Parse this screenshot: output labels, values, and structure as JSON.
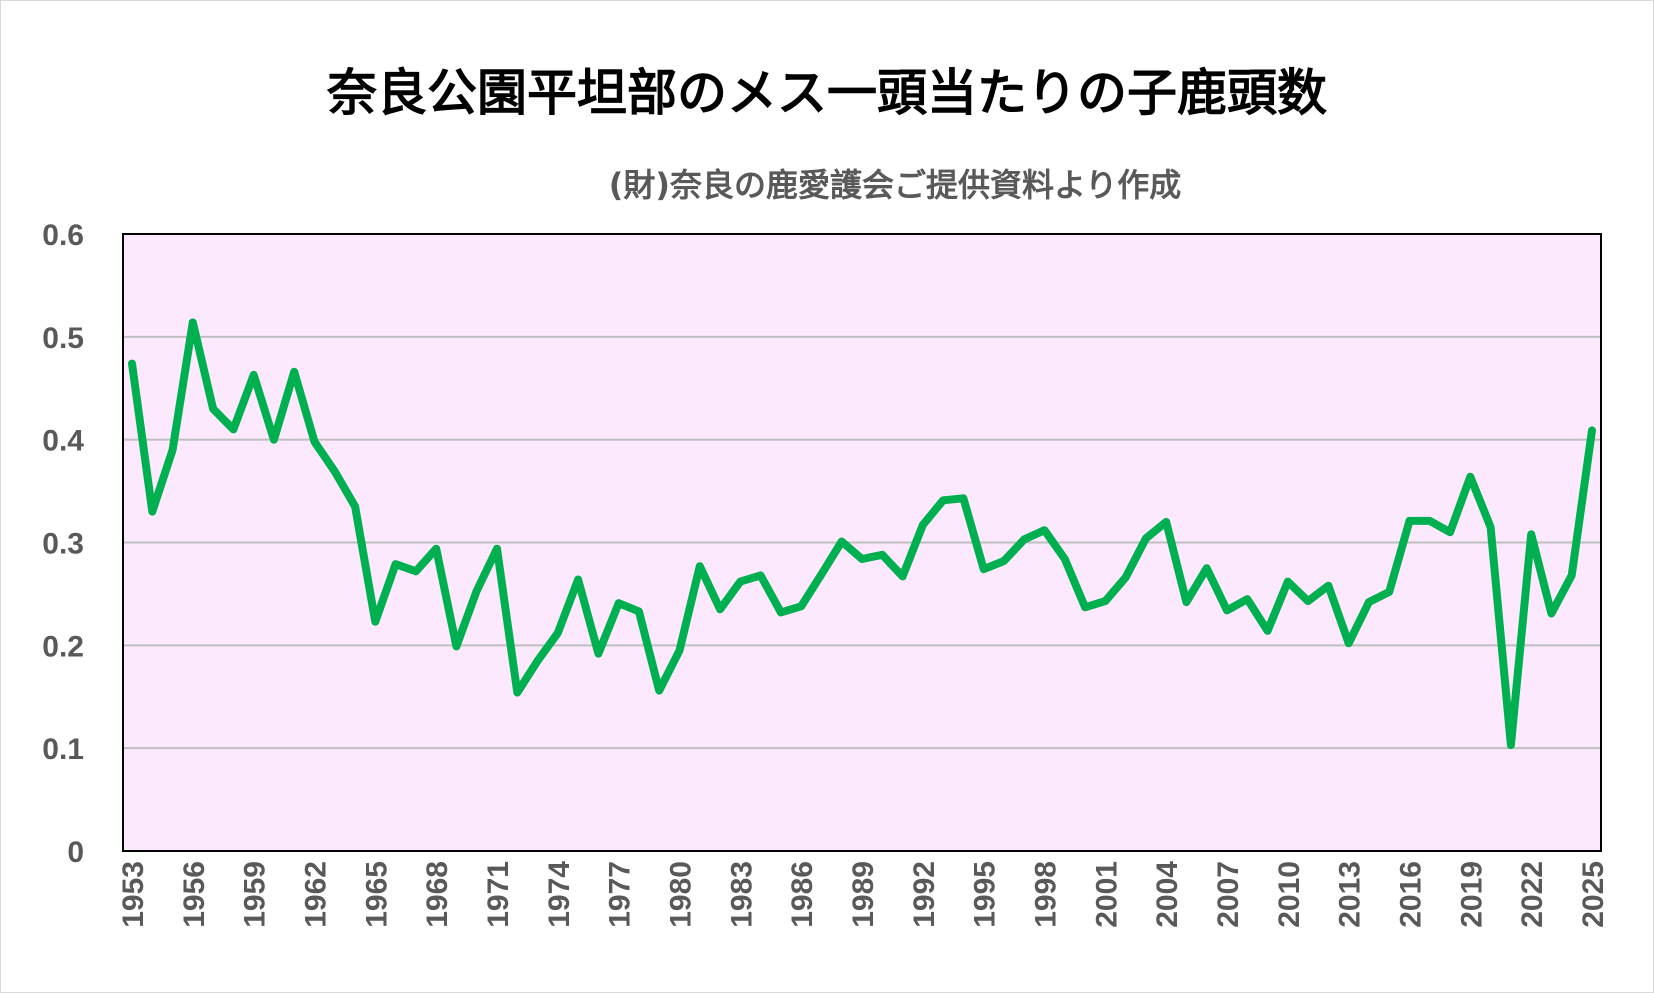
{
  "chart_data": {
    "type": "line",
    "title": "奈良公園平坦部のメス一頭当たりの子鹿頭数",
    "subtitle": "(財)奈良の鹿愛護会ご提供資料より作成",
    "xlabel": "",
    "ylabel": "",
    "ylim": [
      0,
      0.6
    ],
    "yticks": [
      "0",
      "0.1",
      "0.2",
      "0.3",
      "0.4",
      "0.5",
      "0.6"
    ],
    "ytick_values": [
      0,
      0.1,
      0.2,
      0.3,
      0.4,
      0.5,
      0.6
    ],
    "xlim": [
      1953,
      2025
    ],
    "xtick_step": 3,
    "grid": true,
    "legend": "none",
    "colors": {
      "line": "#00b050",
      "plot_bg": "#fde9fd",
      "grid": "#bfbfbf"
    },
    "series": [
      {
        "name": "子鹿頭数",
        "x": [
          1953,
          1954,
          1955,
          1956,
          1957,
          1958,
          1959,
          1960,
          1961,
          1962,
          1963,
          1964,
          1965,
          1966,
          1967,
          1968,
          1969,
          1970,
          1971,
          1972,
          1973,
          1974,
          1975,
          1976,
          1977,
          1978,
          1979,
          1980,
          1981,
          1982,
          1983,
          1984,
          1985,
          1986,
          1987,
          1988,
          1989,
          1990,
          1991,
          1992,
          1993,
          1994,
          1995,
          1996,
          1997,
          1998,
          1999,
          2000,
          2001,
          2002,
          2003,
          2004,
          2005,
          2006,
          2007,
          2008,
          2009,
          2010,
          2011,
          2012,
          2013,
          2014,
          2015,
          2016,
          2017,
          2018,
          2019,
          2020,
          2021,
          2022,
          2023,
          2024,
          2025
        ],
        "values": [
          0.474,
          0.33,
          0.39,
          0.514,
          0.43,
          0.41,
          0.463,
          0.4,
          0.466,
          0.398,
          0.369,
          0.335,
          0.223,
          0.279,
          0.272,
          0.294,
          0.199,
          0.253,
          0.294,
          0.154,
          0.185,
          0.212,
          0.264,
          0.192,
          0.241,
          0.233,
          0.156,
          0.195,
          0.277,
          0.235,
          0.262,
          0.268,
          0.232,
          0.238,
          0.269,
          0.301,
          0.284,
          0.288,
          0.267,
          0.317,
          0.341,
          0.343,
          0.274,
          0.282,
          0.303,
          0.312,
          0.284,
          0.237,
          0.243,
          0.266,
          0.304,
          0.32,
          0.242,
          0.275,
          0.234,
          0.245,
          0.214,
          0.262,
          0.243,
          0.258,
          0.202,
          0.242,
          0.252,
          0.321,
          0.321,
          0.31,
          0.364,
          0.315,
          0.103,
          0.308,
          0.231,
          0.268,
          0.409
        ]
      }
    ]
  }
}
